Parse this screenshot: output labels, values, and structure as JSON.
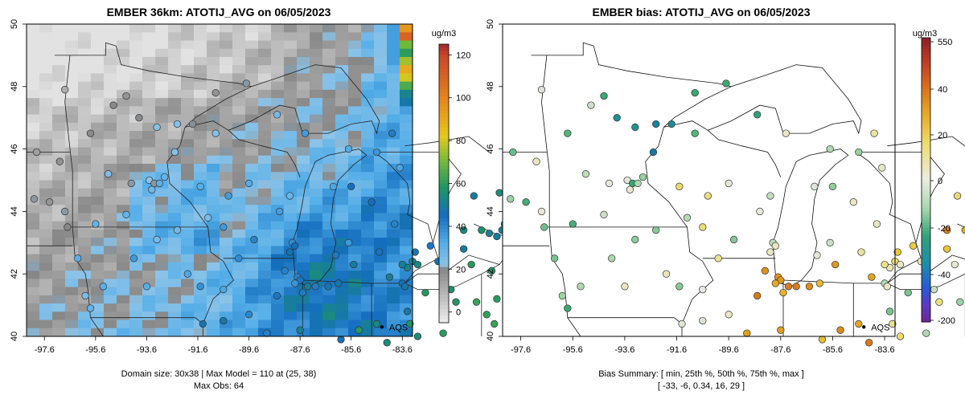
{
  "chart_data": [
    {
      "type": "heatmap",
      "title": "EMBER 36km: ATOTIJ_AVG on 06/05/2023",
      "x_ticks": [
        "-97.6",
        "-95.6",
        "-93.6",
        "-91.6",
        "-89.6",
        "-87.6",
        "-85.6",
        "-83.6"
      ],
      "y_ticks": [
        "40",
        "42",
        "44",
        "46",
        "48",
        "50"
      ],
      "xlim": [
        -98.3,
        -83.2
      ],
      "ylim": [
        40.0,
        50.0
      ],
      "colorbar": {
        "unit": "ug/m3",
        "ticks": [
          "0",
          "20",
          "40",
          "60",
          "80",
          "100",
          "120"
        ],
        "range": [
          -5,
          125
        ]
      },
      "annotation": "AQS",
      "annotation_point": [
        -84.4,
        40.3
      ],
      "footnote": [
        "Domain size: 30x38 | Max Model = 110 at (25, 38)",
        "Max Obs: 64"
      ],
      "grid_dims": [
        30,
        38
      ],
      "max_model": 110,
      "max_obs": 64
    },
    {
      "type": "scatter",
      "title": "EMBER bias: ATOTIJ_AVG on 06/05/2023",
      "x_ticks": [
        "-97.6",
        "-95.6",
        "-93.6",
        "-91.6",
        "-89.6",
        "-87.6",
        "-85.6",
        "-83.6"
      ],
      "y_ticks": [
        "40",
        "42",
        "44",
        "46",
        "48",
        "50"
      ],
      "xlim": [
        -98.3,
        -83.2
      ],
      "ylim": [
        40.0,
        50.0
      ],
      "colorbar": {
        "unit": "ug/m3",
        "ticks": [
          "550",
          "40",
          "20",
          "0",
          "-20",
          "-40",
          "-200"
        ]
      },
      "annotation": "AQS",
      "annotation_point": [
        -84.4,
        40.3
      ],
      "footnote": [
        "Bias Summary: [ min, 25th %, 50th %, 75th %, max ]",
        "[ -33,   -6,   0.34,   16,   29 ]"
      ],
      "bias_summary": {
        "min": -33,
        "p25": -6,
        "p50": 0.34,
        "p75": 16,
        "max": 29
      }
    }
  ]
}
